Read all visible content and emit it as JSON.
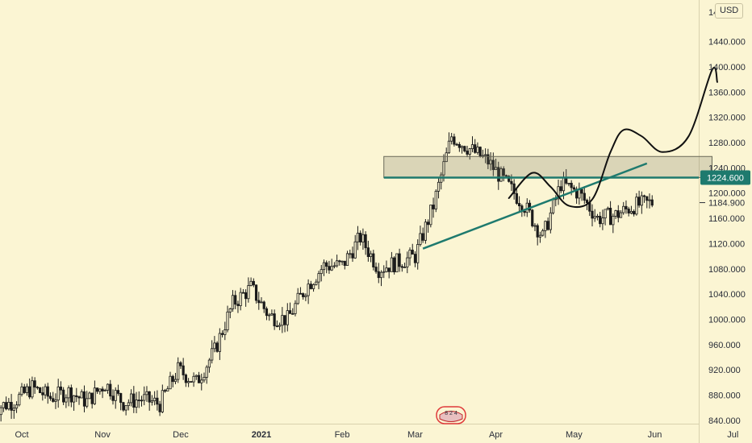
{
  "chart_data": {
    "type": "candlestick",
    "title": "",
    "currency": "USD",
    "y_axis_ticks": [
      840,
      880,
      920,
      960,
      1000,
      1040,
      1080,
      1120,
      1160,
      1200,
      1240,
      1280,
      1320,
      1360,
      1400,
      1440
    ],
    "y_tick_labels": [
      "840.000",
      "880.000",
      "920.000",
      "960.000",
      "1000.000",
      "1040.000",
      "1080.000",
      "1120.000",
      "1160.000",
      "1200.000",
      "1240.000",
      "1280.000",
      "1320.000",
      "1360.000",
      "1400.000",
      "1440.000"
    ],
    "y_axis_top_label_partial": "14",
    "ylim": [
      822,
      1488
    ],
    "x_axis_labels": [
      {
        "text": "Oct",
        "date": "2020-10-01",
        "bold": false
      },
      {
        "text": "Nov",
        "date": "2020-11-01",
        "bold": false
      },
      {
        "text": "Dec",
        "date": "2020-12-01",
        "bold": false
      },
      {
        "text": "2021",
        "date": "2021-01-01",
        "bold": true
      },
      {
        "text": "Feb",
        "date": "2021-02-01",
        "bold": false
      },
      {
        "text": "Mar",
        "date": "2021-03-01",
        "bold": false
      },
      {
        "text": "Apr",
        "date": "2021-04-01",
        "bold": false
      },
      {
        "text": "May",
        "date": "2021-05-01",
        "bold": false
      },
      {
        "text": "Jun",
        "date": "2021-06-01",
        "bold": false
      },
      {
        "text": "Jul",
        "date": "2021-07-01",
        "bold": false
      }
    ],
    "price_path": [
      [
        "2020-09-20",
        858
      ],
      [
        "2020-09-28",
        870
      ],
      [
        "2020-10-05",
        892
      ],
      [
        "2020-10-12",
        876
      ],
      [
        "2020-10-19",
        885
      ],
      [
        "2020-10-26",
        870
      ],
      [
        "2020-11-02",
        898
      ],
      [
        "2020-11-09",
        868
      ],
      [
        "2020-11-16",
        874
      ],
      [
        "2020-11-23",
        866
      ],
      [
        "2020-11-30",
        920
      ],
      [
        "2020-12-07",
        900
      ],
      [
        "2020-12-14",
        950
      ],
      [
        "2020-12-21",
        1025
      ],
      [
        "2020-12-28",
        1050
      ],
      [
        "2021-01-04",
        1005
      ],
      [
        "2021-01-11",
        1000
      ],
      [
        "2021-01-18",
        1050
      ],
      [
        "2021-01-25",
        1085
      ],
      [
        "2021-02-01",
        1085
      ],
      [
        "2021-02-08",
        1130
      ],
      [
        "2021-02-15",
        1080
      ],
      [
        "2021-02-22",
        1090
      ],
      [
        "2021-03-01",
        1100
      ],
      [
        "2021-03-08",
        1180
      ],
      [
        "2021-03-15",
        1290
      ],
      [
        "2021-03-22",
        1270
      ],
      [
        "2021-03-29",
        1250
      ],
      [
        "2021-04-05",
        1215
      ],
      [
        "2021-04-12",
        1180
      ],
      [
        "2021-04-19",
        1130
      ],
      [
        "2021-04-26",
        1215
      ],
      [
        "2021-05-03",
        1200
      ],
      [
        "2021-05-10",
        1160
      ],
      [
        "2021-05-17",
        1165
      ],
      [
        "2021-05-24",
        1180
      ],
      [
        "2021-05-31",
        1185
      ]
    ],
    "last_price": 1184.9,
    "last_price_label": "1184.900",
    "horizontal_line": {
      "value": 1224.6,
      "label": "1224.600",
      "color": "#1e7a6e"
    },
    "rectangle_zone": {
      "from": "2021-02-17",
      "to": "2021-06-23",
      "low": 1224.6,
      "high": 1258
    },
    "support_trendline": {
      "from": [
        "2021-03-04",
        1112
      ],
      "to": [
        "2021-05-29",
        1247
      ]
    },
    "projection_path": [
      [
        "2021-04-06",
        1192
      ],
      [
        "2021-04-15",
        1232
      ],
      [
        "2021-04-22",
        1210
      ],
      [
        "2021-04-29",
        1180
      ],
      [
        "2021-05-08",
        1190
      ],
      [
        "2021-05-15",
        1265
      ],
      [
        "2021-05-20",
        1300
      ],
      [
        "2021-05-27",
        1290
      ],
      [
        "2021-06-04",
        1265
      ],
      [
        "2021-06-14",
        1290
      ],
      [
        "2021-06-23",
        1395
      ],
      [
        "2021-06-25",
        1376
      ]
    ],
    "grid": false,
    "legend": "none"
  }
}
